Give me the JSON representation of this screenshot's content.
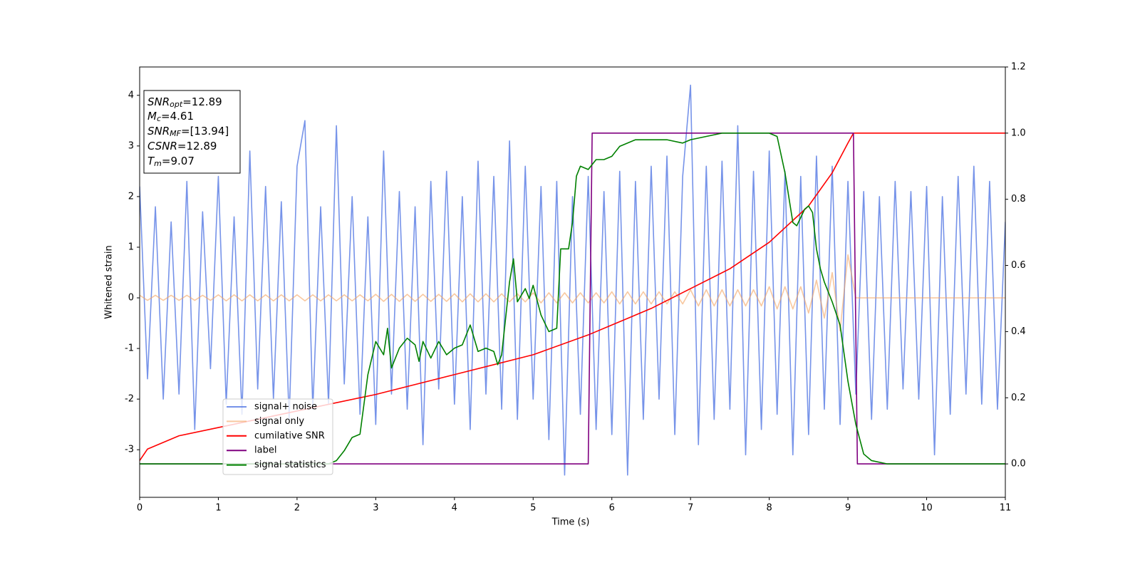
{
  "chart_data": {
    "type": "line",
    "xlabel": "Time (s)",
    "ylabel": "Whitened strain",
    "xlim": [
      0,
      11
    ],
    "xticks": [
      0,
      1,
      2,
      3,
      4,
      5,
      6,
      7,
      8,
      9,
      10,
      11
    ],
    "ylim": [
      -3.94,
      4.56
    ],
    "yticks": [
      -3,
      -2,
      -1,
      0,
      1,
      2,
      3,
      4
    ],
    "y2lim": [
      -0.101,
      1.2
    ],
    "y2ticks": [
      {
        "value": 0,
        "label": "0.0"
      },
      0.2,
      0.4,
      0.6,
      0.8,
      {
        "value": 1,
        "label": "1.0"
      },
      1.2
    ],
    "legend": "lower-left",
    "annotation": [
      {
        "symbol": "SNR",
        "sub": "opt",
        "text": "=12.89"
      },
      {
        "symbol": "M",
        "sub": "c",
        "text": "=4.61"
      },
      {
        "symbol": "SNR",
        "sub": "MF",
        "text": "=[13.94]"
      },
      {
        "symbol": "CSNR",
        "text": "=12.89"
      },
      {
        "symbol": "T",
        "sub": "m",
        "text": "=9.07"
      }
    ],
    "series": [
      {
        "name": "signal+ noise",
        "color": "#4169e1",
        "alpha": 0.72,
        "x": [
          0,
          0.1,
          0.2,
          0.3,
          0.4,
          0.5,
          0.6,
          0.7,
          0.8,
          0.9,
          1,
          1.1,
          1.2,
          1.3,
          1.4,
          1.5,
          1.6,
          1.7,
          1.8,
          1.9,
          2,
          2.1,
          2.2,
          2.3,
          2.4,
          2.5,
          2.6,
          2.7,
          2.8,
          2.9,
          3,
          3.1,
          3.2,
          3.3,
          3.4,
          3.5,
          3.6,
          3.7,
          3.8,
          3.9,
          4,
          4.1,
          4.2,
          4.3,
          4.4,
          4.5,
          4.6,
          4.7,
          4.8,
          4.9,
          5,
          5.1,
          5.2,
          5.3,
          5.4,
          5.5,
          5.6,
          5.7,
          5.8,
          5.9,
          6,
          6.1,
          6.2,
          6.3,
          6.4,
          6.5,
          6.6,
          6.7,
          6.8,
          6.9,
          7,
          7.1,
          7.2,
          7.3,
          7.4,
          7.5,
          7.6,
          7.7,
          7.8,
          7.9,
          8,
          8.1,
          8.2,
          8.3,
          8.4,
          8.5,
          8.6,
          8.7,
          8.8,
          8.9,
          9,
          9.1,
          9.2,
          9.3,
          9.4,
          9.5,
          9.6,
          9.7,
          9.8,
          9.9,
          10,
          10.1,
          10.2,
          10.3,
          10.4,
          10.5,
          10.6,
          10.7,
          10.8,
          10.9,
          11
        ],
        "values": [
          2.2,
          -1.6,
          1.8,
          -2.0,
          1.5,
          -1.9,
          2.3,
          -2.6,
          1.7,
          -1.4,
          2.4,
          -2.1,
          1.6,
          -2.3,
          2.9,
          -1.8,
          2.2,
          -2.0,
          1.9,
          -2.4,
          2.6,
          3.5,
          -2.2,
          1.8,
          -2.1,
          3.4,
          -1.7,
          2.0,
          -2.3,
          1.6,
          -2.5,
          2.9,
          -1.9,
          2.1,
          -2.2,
          1.8,
          -2.9,
          2.3,
          -1.8,
          2.5,
          -2.1,
          2.0,
          -2.6,
          2.7,
          -1.9,
          2.4,
          -2.2,
          3.1,
          -2.4,
          2.6,
          -2.0,
          2.2,
          -2.8,
          2.3,
          -3.5,
          2.0,
          -2.3,
          2.4,
          -2.6,
          2.1,
          -2.7,
          2.5,
          -3.5,
          2.3,
          -2.4,
          2.6,
          -2.0,
          2.8,
          -2.7,
          2.4,
          4.2,
          -2.9,
          2.6,
          -2.4,
          2.7,
          -2.2,
          3.4,
          -3.1,
          2.5,
          -2.6,
          2.9,
          -2.3,
          2.5,
          -3.1,
          2.4,
          -2.7,
          2.8,
          -2.2,
          2.6,
          -2.5,
          2.3,
          -1.9,
          2.1,
          -2.4,
          2.0,
          -2.2,
          2.3,
          -1.8,
          2.1,
          -2.0,
          2.2,
          -3.1,
          2.0,
          -2.3,
          2.4,
          -1.9,
          2.6,
          -2.1,
          2.3,
          -2.2,
          1.5
        ]
      },
      {
        "name": "signal only",
        "color": "#f4a460",
        "alpha": 0.6,
        "x": [
          0,
          0.1,
          0.2,
          0.3,
          0.4,
          0.5,
          0.6,
          0.7,
          0.8,
          0.9,
          1,
          1.1,
          1.2,
          1.3,
          1.4,
          1.5,
          1.6,
          1.7,
          1.8,
          1.9,
          2,
          2.1,
          2.2,
          2.3,
          2.4,
          2.5,
          2.6,
          2.7,
          2.8,
          2.9,
          3,
          3.1,
          3.2,
          3.3,
          3.4,
          3.5,
          3.6,
          3.7,
          3.8,
          3.9,
          4,
          4.1,
          4.2,
          4.3,
          4.4,
          4.5,
          4.6,
          4.7,
          4.8,
          4.9,
          5,
          5.1,
          5.2,
          5.3,
          5.4,
          5.5,
          5.6,
          5.7,
          5.8,
          5.9,
          6,
          6.1,
          6.2,
          6.3,
          6.4,
          6.5,
          6.6,
          6.7,
          6.8,
          6.9,
          7,
          7.1,
          7.2,
          7.3,
          7.4,
          7.5,
          7.6,
          7.7,
          7.8,
          7.9,
          8,
          8.1,
          8.2,
          8.3,
          8.4,
          8.5,
          8.6,
          8.7,
          8.8,
          8.9,
          9,
          9.1,
          9.2,
          9.3,
          9.4,
          9.5,
          9.6,
          9.7,
          9.8,
          9.9,
          10,
          10.1,
          10.2,
          10.3,
          10.4,
          10.5,
          10.6,
          10.7,
          10.8,
          10.9,
          11
        ],
        "values": [
          0.05,
          -0.05,
          0.05,
          -0.05,
          0.05,
          -0.05,
          0.05,
          -0.05,
          0.05,
          -0.05,
          0.06,
          -0.06,
          0.06,
          -0.06,
          0.06,
          -0.06,
          0.06,
          -0.06,
          0.06,
          -0.06,
          0.06,
          -0.06,
          0.06,
          -0.06,
          0.06,
          -0.06,
          0.06,
          -0.06,
          0.06,
          -0.06,
          0.07,
          -0.07,
          0.07,
          -0.07,
          0.07,
          -0.07,
          0.07,
          -0.07,
          0.07,
          -0.07,
          0.08,
          -0.08,
          0.08,
          -0.08,
          0.08,
          -0.08,
          0.08,
          -0.08,
          0.08,
          -0.08,
          0.1,
          -0.1,
          0.1,
          -0.1,
          0.1,
          -0.1,
          0.1,
          -0.1,
          0.1,
          -0.1,
          0.12,
          -0.12,
          0.12,
          -0.12,
          0.12,
          -0.12,
          0.12,
          -0.12,
          0.12,
          -0.12,
          0.16,
          -0.16,
          0.16,
          -0.16,
          0.16,
          -0.16,
          0.16,
          -0.16,
          0.16,
          -0.16,
          0.22,
          -0.22,
          0.22,
          -0.22,
          0.22,
          -0.3,
          0.35,
          -0.4,
          0.5,
          -0.65,
          0.85,
          0,
          0,
          0,
          0,
          0,
          0,
          0,
          0,
          0,
          0,
          0,
          0,
          0,
          0,
          0,
          0,
          0,
          0,
          0,
          0
        ]
      },
      {
        "name": "cumilative SNR",
        "color": "#ff0000",
        "axis": "y2",
        "x": [
          0,
          0.1,
          0.5,
          1,
          2,
          3,
          4,
          5,
          5.7,
          6,
          6.5,
          7,
          7.5,
          8,
          8.5,
          8.8,
          9,
          9.07,
          11
        ],
        "values": [
          0.01,
          0.045,
          0.085,
          0.11,
          0.16,
          0.21,
          0.27,
          0.33,
          0.39,
          0.42,
          0.47,
          0.53,
          0.59,
          0.67,
          0.78,
          0.88,
          0.97,
          1,
          1
        ]
      },
      {
        "name": "label",
        "color": "#800080",
        "axis": "y2",
        "x": [
          0,
          5.7,
          5.75,
          9.07,
          9.12,
          11
        ],
        "values": [
          0,
          0,
          1,
          1,
          0,
          0
        ]
      },
      {
        "name": "signal statistics",
        "color": "#008000",
        "axis": "y2",
        "x": [
          0,
          2.4,
          2.5,
          2.6,
          2.7,
          2.8,
          2.9,
          3.0,
          3.1,
          3.15,
          3.2,
          3.3,
          3.4,
          3.5,
          3.55,
          3.6,
          3.7,
          3.8,
          3.9,
          4.0,
          4.1,
          4.2,
          4.3,
          4.4,
          4.5,
          4.55,
          4.6,
          4.7,
          4.75,
          4.8,
          4.9,
          4.95,
          5.0,
          5.1,
          5.2,
          5.3,
          5.35,
          5.45,
          5.5,
          5.55,
          5.6,
          5.7,
          5.8,
          5.9,
          6.0,
          6.1,
          6.2,
          6.3,
          6.4,
          6.5,
          6.7,
          6.9,
          7.0,
          7.2,
          7.4,
          7.6,
          7.8,
          8.0,
          8.1,
          8.2,
          8.3,
          8.35,
          8.45,
          8.5,
          8.55,
          8.6,
          8.65,
          8.7,
          8.8,
          8.9,
          9.0,
          9.1,
          9.2,
          9.3,
          9.5,
          11
        ],
        "values": [
          0,
          0,
          0.01,
          0.04,
          0.08,
          0.09,
          0.27,
          0.37,
          0.33,
          0.41,
          0.29,
          0.35,
          0.38,
          0.36,
          0.31,
          0.37,
          0.32,
          0.37,
          0.33,
          0.35,
          0.36,
          0.42,
          0.34,
          0.35,
          0.34,
          0.3,
          0.33,
          0.55,
          0.62,
          0.49,
          0.53,
          0.5,
          0.54,
          0.45,
          0.4,
          0.41,
          0.65,
          0.65,
          0.73,
          0.87,
          0.9,
          0.89,
          0.92,
          0.92,
          0.93,
          0.96,
          0.97,
          0.98,
          0.98,
          0.98,
          0.98,
          0.97,
          0.98,
          0.99,
          1,
          1,
          1,
          1,
          0.99,
          0.88,
          0.73,
          0.72,
          0.77,
          0.78,
          0.76,
          0.65,
          0.59,
          0.55,
          0.49,
          0.42,
          0.25,
          0.12,
          0.03,
          0.01,
          0,
          0
        ]
      }
    ]
  }
}
